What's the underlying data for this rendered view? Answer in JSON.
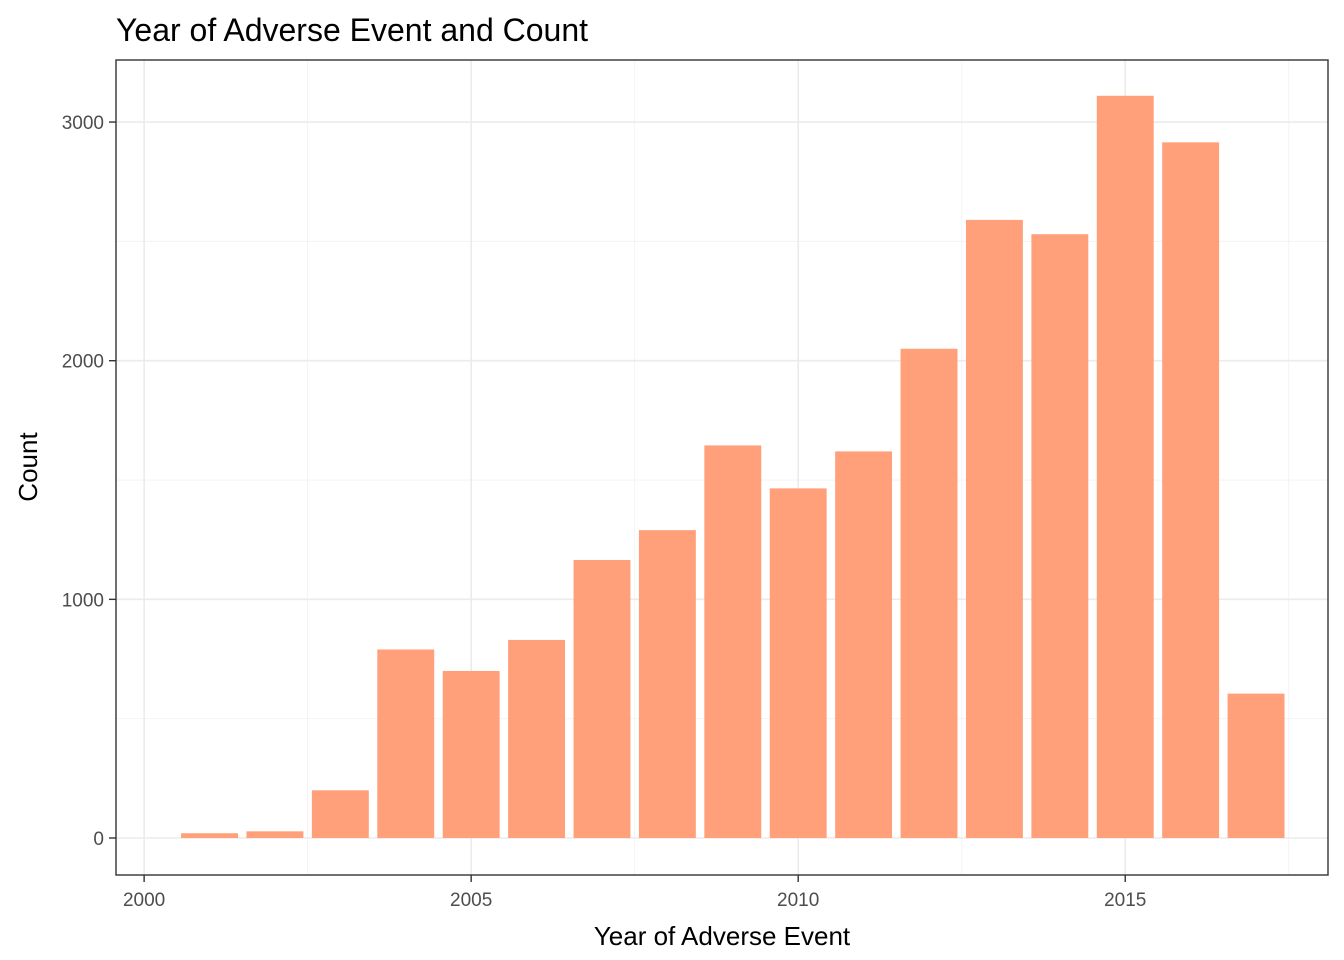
{
  "chart_data": {
    "type": "bar",
    "title": "Year of Adverse Event and Count",
    "xlabel": "Year of Adverse Event",
    "ylabel": "Count",
    "x": [
      2001,
      2002,
      2003,
      2004,
      2005,
      2006,
      2007,
      2008,
      2009,
      2010,
      2011,
      2012,
      2013,
      2014,
      2015,
      2016,
      2017
    ],
    "values": [
      20,
      28,
      200,
      790,
      700,
      830,
      1165,
      1290,
      1645,
      1465,
      1620,
      2050,
      2590,
      2530,
      3110,
      2915,
      605
    ],
    "xlim": [
      1999.57,
      2018.1
    ],
    "ylim": [
      -155,
      3260
    ],
    "xticks": [
      2000,
      2005,
      2010,
      2015
    ],
    "xtick_labels": [
      "2000",
      "2005",
      "2010",
      "2015"
    ],
    "yticks": [
      0,
      1000,
      2000,
      3000
    ],
    "ytick_labels": [
      "0",
      "1000",
      "2000",
      "3000"
    ],
    "bar_color": "#ffa07a",
    "grid": true,
    "legend": "none"
  }
}
